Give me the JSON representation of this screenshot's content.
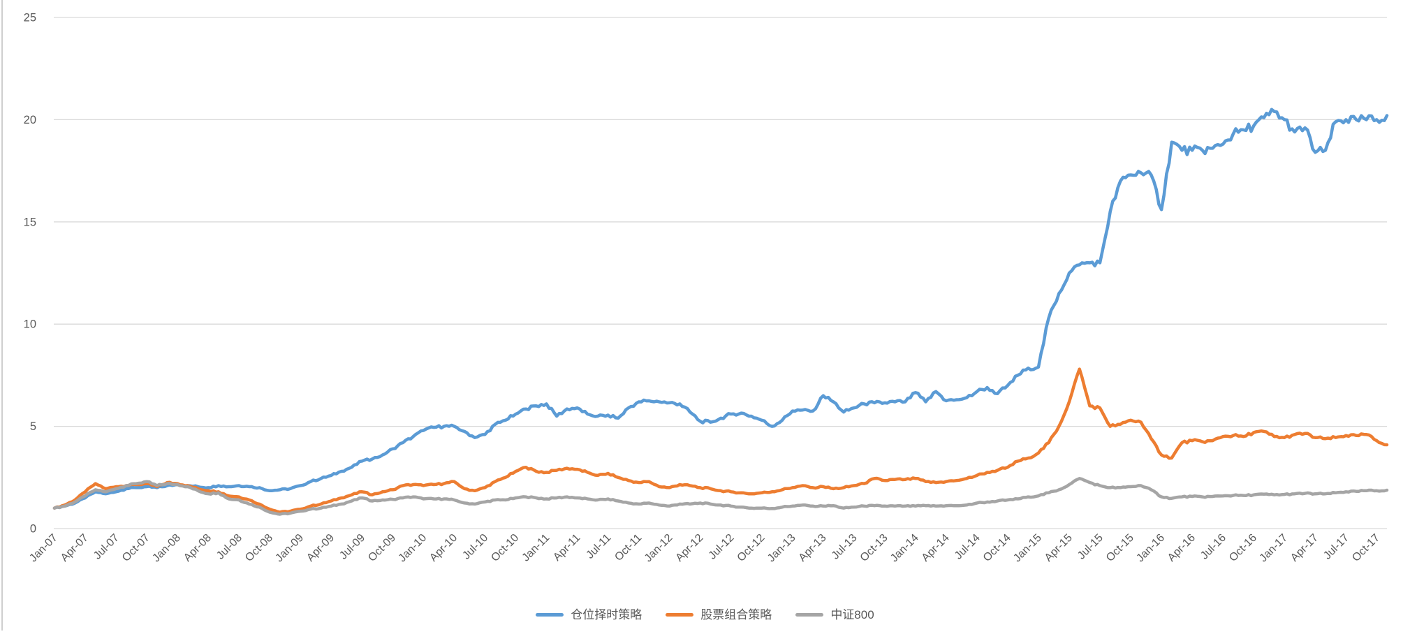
{
  "chart_data": {
    "type": "line",
    "title": "",
    "xlabel": "",
    "ylabel": "",
    "x_unit": "month",
    "x_start": "Jan-07",
    "x_end": "Nov-17",
    "n_points": 131,
    "grid": true,
    "legend_position": "bottom",
    "background_color": "#ffffff",
    "gridline_color": "#d9d9d9",
    "axis_label_color": "#595959",
    "ylim": [
      0,
      25
    ],
    "y_tick_step": 5,
    "y_tick_labels": [
      "0",
      "5",
      "10",
      "15",
      "20",
      "25"
    ],
    "x_tick_interval_months": 3,
    "x_tick_labels": [
      "Jan-07",
      "Apr-07",
      "Jul-07",
      "Oct-07",
      "Jan-08",
      "Apr-08",
      "Jul-08",
      "Oct-08",
      "Jan-09",
      "Apr-09",
      "Jul-09",
      "Oct-09",
      "Jan-10",
      "Apr-10",
      "Jul-10",
      "Oct-10",
      "Jan-11",
      "Apr-11",
      "Jul-11",
      "Oct-11",
      "Jan-12",
      "Apr-12",
      "Jul-12",
      "Oct-12",
      "Jan-13",
      "Apr-13",
      "Jul-13",
      "Oct-13",
      "Jan-14",
      "Apr-14",
      "Jul-14",
      "Oct-14",
      "Jan-15",
      "Apr-15",
      "Jul-15",
      "Oct-15",
      "Jan-16",
      "Apr-16",
      "Jul-16",
      "Oct-16",
      "Jan-17",
      "Apr-17",
      "Jul-17",
      "Oct-17"
    ],
    "series": [
      {
        "name": "仓位择时策略",
        "color": "#5b9bd5",
        "values": [
          1.0,
          1.1,
          1.25,
          1.5,
          1.8,
          1.7,
          1.8,
          1.95,
          2.0,
          2.05,
          2.0,
          2.1,
          2.15,
          2.1,
          2.05,
          2.0,
          2.1,
          2.05,
          2.1,
          2.05,
          2.0,
          1.85,
          1.9,
          1.95,
          2.1,
          2.3,
          2.45,
          2.6,
          2.8,
          3.0,
          3.3,
          3.4,
          3.6,
          3.9,
          4.2,
          4.5,
          4.8,
          4.95,
          5.0,
          5.0,
          4.75,
          4.45,
          4.6,
          5.1,
          5.3,
          5.6,
          5.85,
          6.0,
          6.1,
          5.5,
          5.85,
          5.9,
          5.6,
          5.5,
          5.55,
          5.4,
          5.9,
          6.2,
          6.25,
          6.2,
          6.15,
          6.1,
          5.7,
          5.25,
          5.2,
          5.4,
          5.6,
          5.65,
          5.5,
          5.3,
          5.0,
          5.3,
          5.75,
          5.8,
          5.75,
          6.5,
          6.2,
          5.7,
          5.9,
          6.1,
          6.15,
          6.15,
          6.2,
          6.2,
          6.65,
          6.2,
          6.7,
          6.25,
          6.3,
          6.4,
          6.7,
          6.9,
          6.6,
          7.0,
          7.5,
          7.85,
          7.9,
          10.3,
          11.5,
          12.5,
          12.9,
          13.0,
          13.0,
          15.5,
          17.0,
          17.3,
          17.4,
          17.3,
          15.6,
          18.9,
          18.5,
          18.5,
          18.5,
          18.6,
          18.8,
          19.3,
          19.5,
          19.7,
          20.1,
          20.4,
          20.0,
          19.4,
          19.6,
          18.4,
          18.5,
          19.9,
          20.0,
          20.0,
          20.0,
          20.0,
          20.2
        ]
      },
      {
        "name": "股票组合策略",
        "color": "#ed7d31",
        "values": [
          1.0,
          1.15,
          1.4,
          1.8,
          2.2,
          1.95,
          2.05,
          2.1,
          2.15,
          2.2,
          2.05,
          2.25,
          2.2,
          2.1,
          1.95,
          1.85,
          1.8,
          1.6,
          1.55,
          1.4,
          1.2,
          0.95,
          0.8,
          0.85,
          0.95,
          1.1,
          1.2,
          1.35,
          1.5,
          1.65,
          1.8,
          1.65,
          1.8,
          1.9,
          2.1,
          2.15,
          2.1,
          2.15,
          2.2,
          2.3,
          1.95,
          1.85,
          2.0,
          2.3,
          2.5,
          2.8,
          3.0,
          2.8,
          2.75,
          2.85,
          2.95,
          2.9,
          2.75,
          2.6,
          2.7,
          2.5,
          2.35,
          2.25,
          2.3,
          2.05,
          2.0,
          2.15,
          2.1,
          2.0,
          1.95,
          1.85,
          1.8,
          1.75,
          1.7,
          1.75,
          1.8,
          1.9,
          2.0,
          2.1,
          2.0,
          2.05,
          1.95,
          2.0,
          2.1,
          2.2,
          2.45,
          2.35,
          2.4,
          2.4,
          2.45,
          2.3,
          2.25,
          2.3,
          2.35,
          2.45,
          2.6,
          2.75,
          2.85,
          3.0,
          3.3,
          3.45,
          3.7,
          4.2,
          5.0,
          6.2,
          7.8,
          6.0,
          5.9,
          5.0,
          5.1,
          5.3,
          5.2,
          4.4,
          3.6,
          3.45,
          4.2,
          4.3,
          4.25,
          4.3,
          4.5,
          4.55,
          4.5,
          4.7,
          4.75,
          4.5,
          4.45,
          4.6,
          4.65,
          4.45,
          4.4,
          4.45,
          4.55,
          4.55,
          4.6,
          4.3,
          4.1
        ]
      },
      {
        "name": "中证800",
        "color": "#a5a5a5",
        "values": [
          1.0,
          1.1,
          1.3,
          1.6,
          1.9,
          1.8,
          1.95,
          2.1,
          2.2,
          2.3,
          2.1,
          2.2,
          2.15,
          2.05,
          1.85,
          1.7,
          1.75,
          1.45,
          1.4,
          1.2,
          1.05,
          0.8,
          0.7,
          0.75,
          0.85,
          0.95,
          1.0,
          1.1,
          1.2,
          1.35,
          1.5,
          1.35,
          1.4,
          1.43,
          1.5,
          1.55,
          1.45,
          1.45,
          1.45,
          1.4,
          1.25,
          1.2,
          1.3,
          1.4,
          1.4,
          1.5,
          1.55,
          1.5,
          1.45,
          1.5,
          1.55,
          1.5,
          1.45,
          1.4,
          1.45,
          1.35,
          1.25,
          1.2,
          1.25,
          1.15,
          1.1,
          1.2,
          1.2,
          1.25,
          1.2,
          1.15,
          1.1,
          1.05,
          1.0,
          1.0,
          0.98,
          1.05,
          1.1,
          1.15,
          1.1,
          1.1,
          1.12,
          1.0,
          1.05,
          1.1,
          1.12,
          1.1,
          1.1,
          1.1,
          1.1,
          1.12,
          1.1,
          1.12,
          1.12,
          1.15,
          1.25,
          1.3,
          1.35,
          1.4,
          1.45,
          1.55,
          1.6,
          1.75,
          1.9,
          2.15,
          2.45,
          2.25,
          2.1,
          2.0,
          2.0,
          2.05,
          2.1,
          1.9,
          1.55,
          1.48,
          1.55,
          1.57,
          1.55,
          1.57,
          1.6,
          1.62,
          1.62,
          1.65,
          1.68,
          1.65,
          1.67,
          1.7,
          1.72,
          1.7,
          1.7,
          1.75,
          1.8,
          1.82,
          1.85,
          1.85,
          1.88
        ]
      }
    ]
  }
}
